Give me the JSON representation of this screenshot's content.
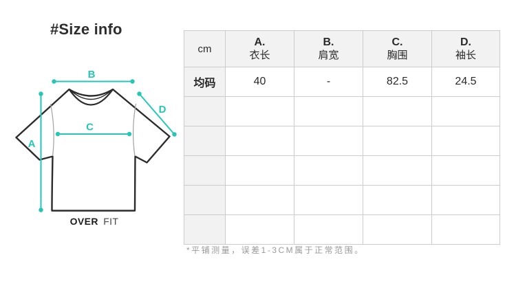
{
  "theme": {
    "accent": "#26c6b7",
    "outline": "#2b2b2b",
    "seam": "#a8a8a8",
    "ink": "#2d2d2d",
    "table-border": "#cccccc",
    "shade": "#f2f2f2",
    "note": "#9a9a9a"
  },
  "header": {
    "title": "#Size info"
  },
  "diagram": {
    "measure_labels": {
      "A": "A",
      "B": "B",
      "C": "C",
      "D": "D"
    },
    "fit_label": {
      "bold": "OVER",
      "regular": "FIT"
    }
  },
  "size_table": {
    "unit_header": "cm",
    "columns": [
      {
        "letter": "A.",
        "name": "衣长"
      },
      {
        "letter": "B.",
        "name": "肩宽"
      },
      {
        "letter": "C.",
        "name": "胸围"
      },
      {
        "letter": "D.",
        "name": "袖长"
      }
    ],
    "rows": [
      {
        "size": "均码",
        "values": [
          "40",
          "-",
          "82.5",
          "24.5"
        ]
      }
    ],
    "empty_row_count": 5
  },
  "footnote": "*平铺测量，误差1-3CM属于正常范围。"
}
